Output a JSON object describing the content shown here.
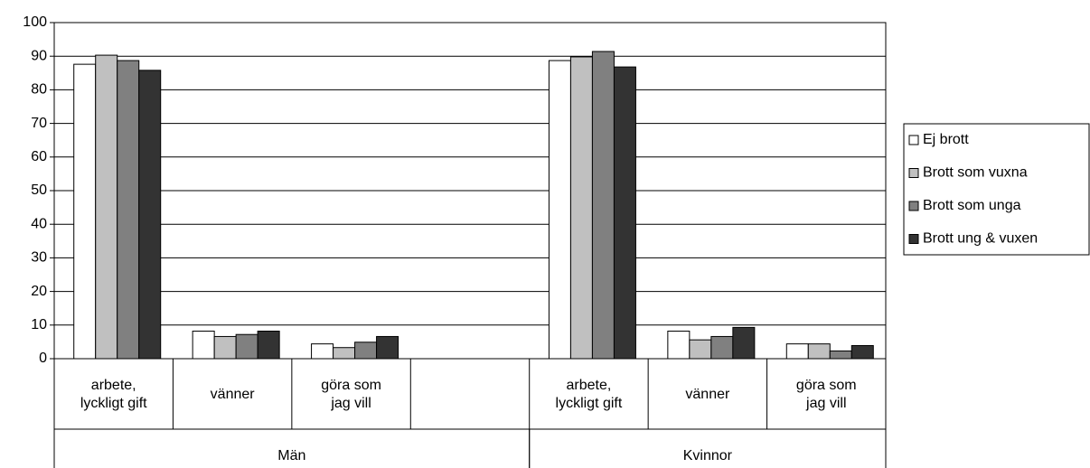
{
  "chart_data": {
    "type": "bar",
    "groups": [
      {
        "name": "Män",
        "categories": [
          "arbete,\nlyckligt gift",
          "vänner",
          "göra som\njag vill",
          null
        ]
      },
      {
        "name": "Kvinnor",
        "categories": [
          "arbete,\nlyckligt gift",
          "vänner",
          "göra som\njag vill"
        ]
      }
    ],
    "series": [
      {
        "name": "Ej brott",
        "color": "#ffffff",
        "values": [
          87.6,
          8.2,
          4.4,
          null,
          88.7,
          8.2,
          4.4
        ]
      },
      {
        "name": "Brott som vuxna",
        "color": "#c0c0c0",
        "values": [
          90.3,
          6.6,
          3.3,
          null,
          89.8,
          5.6,
          4.4
        ]
      },
      {
        "name": "Brott som unga",
        "color": "#808080",
        "values": [
          88.7,
          7.2,
          4.9,
          null,
          91.4,
          6.6,
          2.3
        ]
      },
      {
        "name": "Brott ung & vuxen",
        "color": "#333333",
        "values": [
          85.8,
          8.2,
          6.6,
          null,
          86.8,
          9.3,
          3.9
        ]
      }
    ],
    "ylim": [
      0,
      100
    ],
    "yticks": [
      0,
      10,
      20,
      30,
      40,
      50,
      60,
      70,
      80,
      90,
      100
    ],
    "grid": true,
    "legend": "right"
  }
}
